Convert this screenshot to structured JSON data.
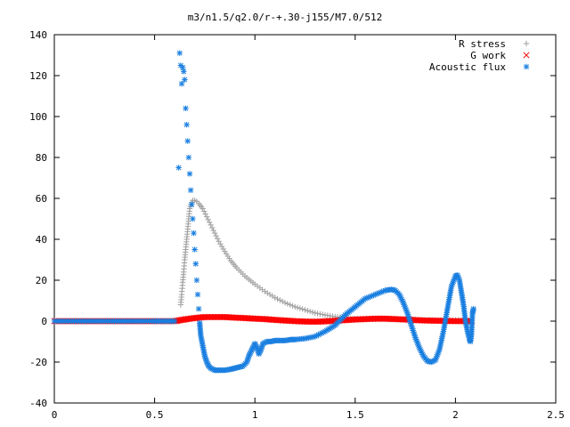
{
  "chart_data": {
    "type": "scatter",
    "title": "m3/n1.5/q2.0/r-+.30-j155/M7.0/512",
    "xlabel": "",
    "ylabel": "",
    "xlim": [
      0,
      2.5
    ],
    "ylim": [
      -40,
      140
    ],
    "xticks": [
      0,
      0.5,
      1,
      1.5,
      2,
      2.5
    ],
    "yticks": [
      -40,
      -20,
      0,
      20,
      40,
      60,
      80,
      100,
      120,
      140
    ],
    "xtick_labels": [
      "0",
      "0.5",
      "1",
      "1.5",
      "2",
      "2.5"
    ],
    "ytick_labels": [
      "-40",
      "-20",
      "0",
      "20",
      "40",
      "60",
      "80",
      "100",
      "120",
      "140"
    ],
    "grid": false,
    "legend_position": "top-right",
    "series": [
      {
        "name": "R stress",
        "marker": "plus",
        "color": "#a0a0a0",
        "points": [
          [
            0.63,
            8
          ],
          [
            0.635,
            13
          ],
          [
            0.64,
            19
          ],
          [
            0.645,
            24
          ],
          [
            0.65,
            30
          ],
          [
            0.655,
            35
          ],
          [
            0.66,
            40
          ],
          [
            0.665,
            45
          ],
          [
            0.67,
            50
          ],
          [
            0.675,
            55
          ],
          [
            0.68,
            57
          ],
          [
            0.685,
            58
          ],
          [
            0.69,
            59
          ],
          [
            0.7,
            59
          ],
          [
            0.71,
            58.5
          ],
          [
            0.72,
            57.5
          ],
          [
            0.74,
            55
          ],
          [
            0.76,
            51
          ],
          [
            0.78,
            47
          ],
          [
            0.8,
            43
          ],
          [
            0.82,
            39
          ],
          [
            0.85,
            34
          ],
          [
            0.88,
            29.5
          ],
          [
            0.91,
            26
          ],
          [
            0.95,
            22
          ],
          [
            1.0,
            18
          ],
          [
            1.05,
            14.5
          ],
          [
            1.1,
            11.5
          ],
          [
            1.15,
            9
          ],
          [
            1.2,
            7
          ],
          [
            1.25,
            5.5
          ],
          [
            1.3,
            4
          ],
          [
            1.35,
            3
          ],
          [
            1.4,
            2.2
          ],
          [
            1.45,
            1.6
          ],
          [
            1.5,
            1.2
          ],
          [
            1.55,
            1.0
          ],
          [
            1.6,
            0.9
          ],
          [
            1.7,
            0.8
          ],
          [
            1.8,
            0.7
          ],
          [
            1.9,
            0.6
          ],
          [
            2.0,
            0.5
          ],
          [
            2.08,
            0.3
          ]
        ]
      },
      {
        "name": "G work",
        "marker": "cross",
        "color": "#ff0000",
        "points": [
          [
            0.0,
            0
          ],
          [
            0.2,
            0
          ],
          [
            0.4,
            0
          ],
          [
            0.6,
            0
          ],
          [
            0.63,
            0.5
          ],
          [
            0.66,
            1
          ],
          [
            0.7,
            1.5
          ],
          [
            0.75,
            2
          ],
          [
            0.8,
            2
          ],
          [
            0.85,
            2
          ],
          [
            0.9,
            1.7
          ],
          [
            0.95,
            1.5
          ],
          [
            1.0,
            1.2
          ],
          [
            1.05,
            1.0
          ],
          [
            1.1,
            0.6
          ],
          [
            1.15,
            0.3
          ],
          [
            1.2,
            0.0
          ],
          [
            1.25,
            -0.2
          ],
          [
            1.3,
            -0.3
          ],
          [
            1.35,
            -0.1
          ],
          [
            1.4,
            0.2
          ],
          [
            1.45,
            0.5
          ],
          [
            1.5,
            0.8
          ],
          [
            1.55,
            1.0
          ],
          [
            1.6,
            1.2
          ],
          [
            1.65,
            1.2
          ],
          [
            1.7,
            1.0
          ],
          [
            1.75,
            0.8
          ],
          [
            1.8,
            0.5
          ],
          [
            1.85,
            0.3
          ],
          [
            1.9,
            0.2
          ],
          [
            1.95,
            0.1
          ],
          [
            2.0,
            0.0
          ],
          [
            2.05,
            0.0
          ],
          [
            2.08,
            0.0
          ]
        ]
      },
      {
        "name": "Acoustic flux",
        "marker": "star",
        "color": "#1a7fe0",
        "points": [
          [
            0.0,
            0
          ],
          [
            0.1,
            0
          ],
          [
            0.2,
            0
          ],
          [
            0.3,
            0
          ],
          [
            0.4,
            0
          ],
          [
            0.5,
            0
          ],
          [
            0.55,
            0
          ],
          [
            0.6,
            0
          ],
          [
            0.62,
            75
          ],
          [
            0.625,
            131
          ],
          [
            0.63,
            125
          ],
          [
            0.635,
            116
          ],
          [
            0.64,
            124
          ],
          [
            0.645,
            122
          ],
          [
            0.65,
            118
          ],
          [
            0.655,
            104
          ],
          [
            0.66,
            96
          ],
          [
            0.665,
            88
          ],
          [
            0.67,
            80
          ],
          [
            0.675,
            72
          ],
          [
            0.68,
            64
          ],
          [
            0.685,
            57
          ],
          [
            0.69,
            50
          ],
          [
            0.695,
            43
          ],
          [
            0.7,
            35
          ],
          [
            0.705,
            28
          ],
          [
            0.71,
            20
          ],
          [
            0.715,
            13
          ],
          [
            0.72,
            6
          ],
          [
            0.725,
            -1
          ],
          [
            0.73,
            -7
          ],
          [
            0.74,
            -12
          ],
          [
            0.75,
            -17
          ],
          [
            0.76,
            -20
          ],
          [
            0.77,
            -22
          ],
          [
            0.78,
            -23
          ],
          [
            0.8,
            -24
          ],
          [
            0.82,
            -24
          ],
          [
            0.85,
            -24
          ],
          [
            0.88,
            -23.5
          ],
          [
            0.9,
            -23
          ],
          [
            0.92,
            -22.5
          ],
          [
            0.94,
            -22
          ],
          [
            0.96,
            -20
          ],
          [
            0.97,
            -17
          ],
          [
            0.98,
            -15
          ],
          [
            0.99,
            -13
          ],
          [
            1.0,
            -11
          ],
          [
            1.01,
            -13
          ],
          [
            1.02,
            -16
          ],
          [
            1.03,
            -14
          ],
          [
            1.04,
            -11
          ],
          [
            1.06,
            -10
          ],
          [
            1.08,
            -10
          ],
          [
            1.1,
            -9.5
          ],
          [
            1.12,
            -9.5
          ],
          [
            1.15,
            -9.5
          ],
          [
            1.18,
            -9
          ],
          [
            1.2,
            -9
          ],
          [
            1.25,
            -8.5
          ],
          [
            1.3,
            -7.5
          ],
          [
            1.35,
            -5
          ],
          [
            1.4,
            -2
          ],
          [
            1.45,
            3
          ],
          [
            1.5,
            7
          ],
          [
            1.55,
            11
          ],
          [
            1.6,
            13
          ],
          [
            1.65,
            15
          ],
          [
            1.68,
            15.5
          ],
          [
            1.7,
            15
          ],
          [
            1.72,
            13
          ],
          [
            1.74,
            9
          ],
          [
            1.76,
            4
          ],
          [
            1.78,
            -2
          ],
          [
            1.8,
            -8
          ],
          [
            1.82,
            -13
          ],
          [
            1.84,
            -17
          ],
          [
            1.86,
            -19.5
          ],
          [
            1.88,
            -20
          ],
          [
            1.9,
            -19
          ],
          [
            1.92,
            -14
          ],
          [
            1.94,
            -5
          ],
          [
            1.96,
            6
          ],
          [
            1.98,
            17
          ],
          [
            2.0,
            22
          ],
          [
            2.01,
            22.5
          ],
          [
            2.02,
            20
          ],
          [
            2.03,
            14
          ],
          [
            2.04,
            8
          ],
          [
            2.05,
            0
          ],
          [
            2.06,
            -5
          ],
          [
            2.07,
            -9
          ],
          [
            2.075,
            -10
          ],
          [
            2.08,
            -6
          ],
          [
            2.085,
            4
          ],
          [
            2.09,
            6
          ]
        ]
      }
    ]
  }
}
